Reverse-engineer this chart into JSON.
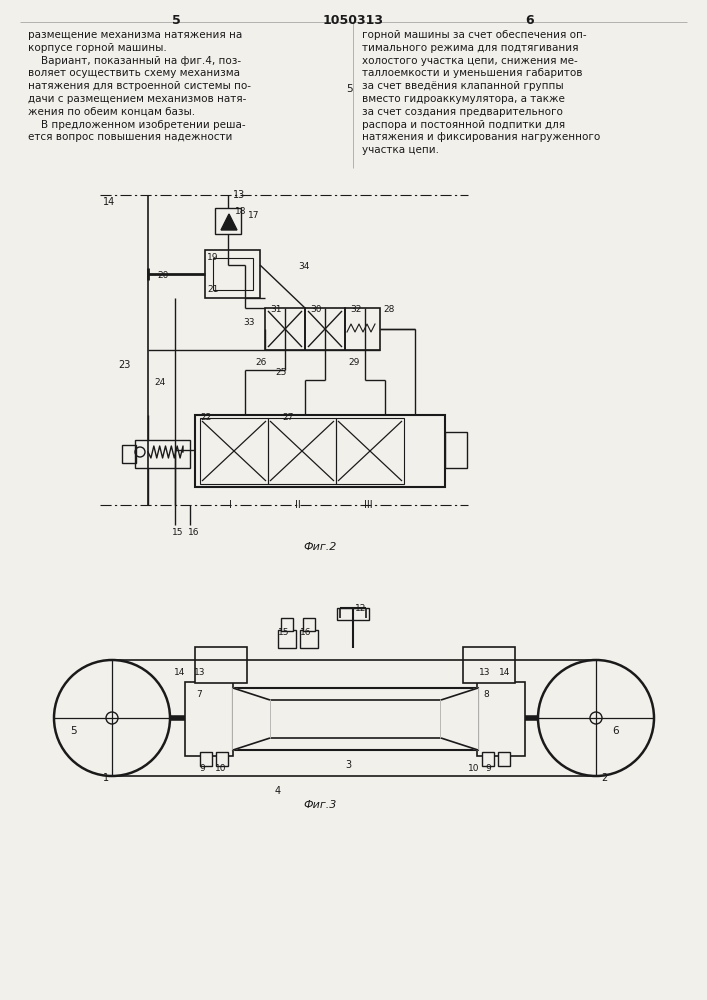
{
  "page_number_left": "5",
  "page_number_center": "1050313",
  "page_number_right": "6",
  "background_color": "#f2f0eb",
  "text_color": "#1a1a1a",
  "line_color": "#1a1a1a",
  "fig2_caption": "Фиг.2",
  "fig3_caption": "Фиг.3",
  "left_text": [
    "размещение механизма натяжения на",
    "корпусе горной машины.",
    "    Вариант, показанный на фиг.4, поз-",
    "воляет осуществить схему механизма",
    "натяжения для встроенной системы по-",
    "дачи с размещением механизмов натя-",
    "жения по обеим концам базы.",
    "    В предложенном изобретении реша-",
    "ется вопрос повышения надежности"
  ],
  "right_text": [
    "горной машины за счет обеспечения оп-",
    "тимального режима для подтягивания",
    "холостого участка цепи, снижения ме-",
    "таллоемкости и уменьшения габаритов",
    "за счет введёния клапанной группы",
    "вместо гидроаккумулятора, а также",
    "за счет создания предварительного",
    "распора и постоянной подпитки для",
    "натяжения и фиксирования нагруженного",
    "участка цепи."
  ]
}
